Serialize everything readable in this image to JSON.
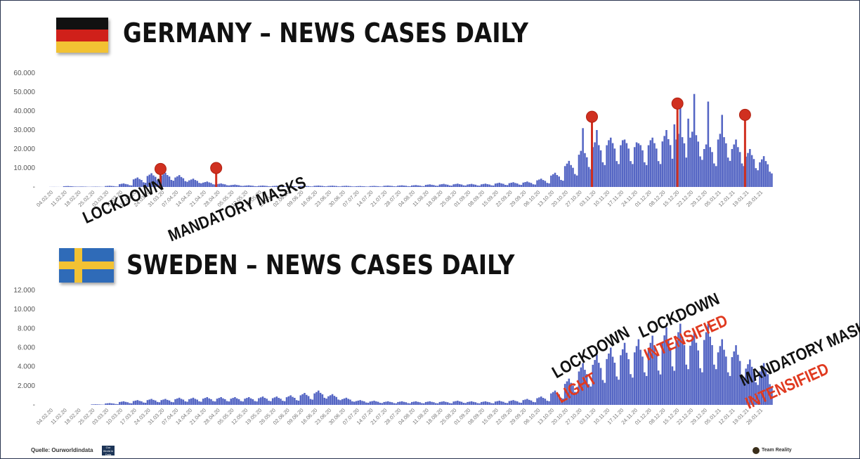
{
  "charts": [
    {
      "title": "GERMANY – NEWS CASES DAILY",
      "flag": "germany-flag",
      "colors": {
        "bar": "#5566c4",
        "marker": "#d03020"
      }
    },
    {
      "title": "SWEDEN – NEWS CASES DAILY",
      "flag": "sweden-flag",
      "colors": {
        "bar": "#5566c4"
      }
    }
  ],
  "chart_data": [
    {
      "type": "bar",
      "title": "GERMANY – NEWS CASES DAILY",
      "ylim": [
        0,
        60000
      ],
      "yticks": [
        "60.000",
        "50.000",
        "40.000",
        "30.000",
        "20.000",
        "10.000",
        "-"
      ],
      "xticks": [
        "04.02.20",
        "11.02.20",
        "18.02.20",
        "25.02.20",
        "03.03.20",
        "10.03.20",
        "17.03.20",
        "24.03.20",
        "31.03.20",
        "07.04.20",
        "14.04.20",
        "21.04.20",
        "28.04.20",
        "05.05.20",
        "12.05.20",
        "19.05.20",
        "26.05.20",
        "02.06.20",
        "09.06.20",
        "16.06.20",
        "23.06.20",
        "30.06.20",
        "07.07.20",
        "14.07.20",
        "21.07.20",
        "28.07.20",
        "04.08.20",
        "11.08.20",
        "18.08.20",
        "25.08.20",
        "01.09.20",
        "08.09.20",
        "15.09.20",
        "22.09.20",
        "29.09.20",
        "06.10.20",
        "13.10.20",
        "20.10.20",
        "27.10.20",
        "03.11.20",
        "10.11.20",
        "17.11.20",
        "24.11.20",
        "01.12.20",
        "08.12.20",
        "15.12.20",
        "22.12.20",
        "29.12.20",
        "05.01.21",
        "12.01.21",
        "19.01.21",
        "26.01.21"
      ],
      "weekly_level": [
        50,
        400,
        200,
        150,
        500,
        1500,
        4000,
        5800,
        6000,
        5000,
        3500,
        2300,
        1500,
        1000,
        700,
        600,
        500,
        400,
        500,
        600,
        550,
        500,
        400,
        450,
        600,
        700,
        800,
        1100,
        1300,
        1400,
        1300,
        1400,
        1800,
        2000,
        2300,
        3500,
        6000,
        11000,
        17000,
        21000,
        22000,
        22000,
        21000,
        22000,
        24000,
        25000,
        26000,
        20000,
        25000,
        20000,
        16000,
        13000
      ],
      "annotations": [
        {
          "label": "LOCKDOWN",
          "sublabel": "",
          "date": "31.03.20"
        },
        {
          "label": "MANDATORY MASKS",
          "sublabel": "",
          "date": "28.04.20"
        },
        {
          "label": "LOCKDOWN",
          "sublabel": "LIGHT",
          "date": "03.11.20"
        },
        {
          "label": "LOCKDOWN",
          "sublabel": "INTENSIFIED",
          "date": "16.12.20"
        },
        {
          "label": "MANDATORY MASKS",
          "sublabel": "INTENSIFIED",
          "date": "19.01.21"
        }
      ]
    },
    {
      "type": "bar",
      "title": "SWEDEN – NEWS CASES DAILY",
      "ylim": [
        0,
        12000
      ],
      "yticks": [
        "12.000",
        "10.000",
        "8.000",
        "6.000",
        "4.000",
        "2.000",
        "-"
      ],
      "xticks": [
        "04.02.20",
        "11.02.20",
        "18.02.20",
        "25.02.20",
        "03.03.20",
        "10.03.20",
        "17.03.20",
        "24.03.20",
        "31.03.20",
        "07.04.20",
        "14.04.20",
        "21.04.20",
        "28.04.20",
        "05.05.20",
        "12.05.20",
        "19.05.20",
        "26.05.20",
        "02.06.20",
        "09.06.20",
        "16.06.20",
        "23.06.20",
        "30.06.20",
        "07.07.20",
        "14.07.20",
        "21.07.20",
        "28.07.20",
        "04.08.20",
        "11.08.20",
        "18.08.20",
        "25.08.20",
        "01.09.20",
        "08.09.20",
        "15.09.20",
        "22.09.20",
        "29.09.20",
        "06.10.20",
        "13.10.20",
        "20.10.20",
        "27.10.20",
        "03.11.20",
        "10.11.20",
        "17.11.20",
        "24.11.20",
        "01.12.20",
        "08.12.20",
        "15.12.20",
        "22.12.20",
        "29.12.20",
        "05.01.21",
        "12.01.21",
        "19.01.21",
        "26.01.21"
      ],
      "weekly_level": [
        0,
        0,
        0,
        50,
        150,
        300,
        400,
        500,
        500,
        600,
        600,
        650,
        650,
        650,
        650,
        700,
        700,
        800,
        1000,
        1200,
        900,
        600,
        400,
        350,
        300,
        300,
        300,
        300,
        300,
        350,
        300,
        300,
        350,
        400,
        500,
        700,
        1200,
        2200,
        3500,
        4200,
        4800,
        5200,
        5500,
        5800,
        6500,
        6800,
        6200,
        6800,
        5500,
        5000,
        3800,
        3500
      ]
    }
  ],
  "footer": {
    "source": "Quelle: Ourworldindata",
    "badge": "Our World in Data",
    "brand": "Team Reality"
  }
}
